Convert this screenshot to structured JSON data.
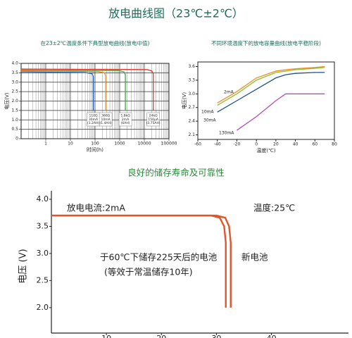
{
  "title": "放电曲线图（23℃±2℃）",
  "section_title": "良好的储存寿命及可靠性",
  "chart_data": [
    {
      "type": "line",
      "title": "在23±2℃温度条件下典型放电曲线(放电中值)",
      "x_label": "时间(h)",
      "y_label": "电压(V)",
      "xscale": "log",
      "xlim": [
        0.1,
        100000
      ],
      "xticks": [
        1,
        10,
        100,
        1000,
        10000,
        100000
      ],
      "ylim": [
        0,
        4
      ],
      "yticks": [
        0,
        {
          "value": 0.5,
          "label": "0.5"
        },
        {
          "value": 1,
          "label": "1.0"
        },
        {
          "value": 1.5,
          "label": "1.5"
        },
        {
          "value": 2,
          "label": "2.0"
        },
        {
          "value": 2.5,
          "label": "2.5"
        },
        {
          "value": 3,
          "label": "3.0"
        },
        {
          "value": 3.5,
          "label": "3.5"
        },
        {
          "value": 4,
          "label": "4.0"
        }
      ],
      "grid": true,
      "series": [
        {
          "name": "110Ω",
          "note": [
            "30mA",
            "(1.2AH)"
          ],
          "color": "#2a6fc9",
          "x": [
            0.1,
            40,
            75,
            85,
            85
          ],
          "values": [
            3.55,
            3.52,
            3.45,
            3.3,
            1.5
          ]
        },
        {
          "name": "360Ω",
          "note": [
            "10mA",
            "(1.4AH)"
          ],
          "color": "#f08a24",
          "x": [
            0.1,
            130,
            240,
            270,
            270
          ],
          "values": [
            3.6,
            3.57,
            3.5,
            3.35,
            1.5
          ]
        },
        {
          "name": "1.8kΩ",
          "note": [
            "2mA",
            "(6AH)"
          ],
          "color": "#3aa845",
          "x": [
            0.1,
            900,
            1500,
            1700,
            1700
          ],
          "values": [
            3.65,
            3.62,
            3.55,
            3.4,
            1.5
          ]
        },
        {
          "name": "24kΩ",
          "note": [
            "150μA",
            "(3.75AH)"
          ],
          "color": "#e0362a",
          "x": [
            0.1,
            13000,
            20000,
            23000,
            23000
          ],
          "values": [
            3.7,
            3.67,
            3.6,
            3.45,
            1.5
          ]
        }
      ]
    },
    {
      "type": "line",
      "title": "不同环境温度下的放电容量曲线(放电平稳阶段)",
      "x_label": "温度(℃)",
      "y_label": "电压(V)",
      "xlim": [
        -60,
        80
      ],
      "xticks": [
        -60,
        -40,
        -20,
        0,
        20,
        40,
        60,
        80
      ],
      "ylim": [
        2,
        3.7
      ],
      "yticks": [
        2.1,
        2.4,
        2.7,
        {
          "value": 3,
          "label": "3.0"
        },
        3.3,
        3.6
      ],
      "x": [
        -40,
        -20,
        0,
        20,
        30,
        40,
        60,
        70
      ],
      "series": [
        {
          "name": "2mA",
          "color": "#f08a24",
          "values": [
            2.8,
            3.05,
            3.35,
            3.5,
            3.53,
            3.55,
            3.58,
            3.6
          ]
        },
        {
          "name": "10mA",
          "color": "#8cbf2a",
          "values": [
            2.75,
            3.0,
            3.3,
            3.47,
            3.5,
            3.53,
            3.56,
            3.58
          ]
        },
        {
          "name": "30mA",
          "color": "#1f4e8c",
          "values": [
            2.6,
            2.85,
            3.1,
            3.35,
            3.42,
            3.45,
            3.47,
            3.47
          ]
        },
        {
          "name": "130mA",
          "color": "#b04fb5",
          "values": [
            null,
            2.2,
            2.5,
            2.85,
            3.0,
            3.0,
            3.0,
            3.0
          ]
        }
      ]
    },
    {
      "type": "line",
      "y_label": "电压 (V)",
      "xlim": [
        0,
        54
      ],
      "xticks": [
        10,
        20,
        30,
        40
      ],
      "ylim": [
        1.53,
        4
      ],
      "yticks": [
        {
          "value": 2,
          "label": "2.0"
        },
        2.5,
        {
          "value": 3,
          "label": "3.0"
        },
        3.5,
        {
          "value": 4,
          "label": "4.0"
        }
      ],
      "series": [
        {
          "color": "#e0562a",
          "x": [
            0,
            29,
            30.6,
            31.4,
            31.7,
            31.7
          ],
          "values": [
            3.7,
            3.7,
            3.66,
            3.5,
            3.2,
            2.0
          ]
        },
        {
          "color": "#e0562a",
          "x": [
            0,
            30,
            31.6,
            32.3,
            32.6,
            32.6
          ],
          "values": [
            3.7,
            3.7,
            3.66,
            3.5,
            3.2,
            2.0
          ]
        }
      ],
      "annotations": [
        "放电电流:2mA",
        "温度:25℃",
        "于60℃下储存225天后的电池",
        "(等效于常温储存10年)",
        "新电池"
      ]
    }
  ]
}
